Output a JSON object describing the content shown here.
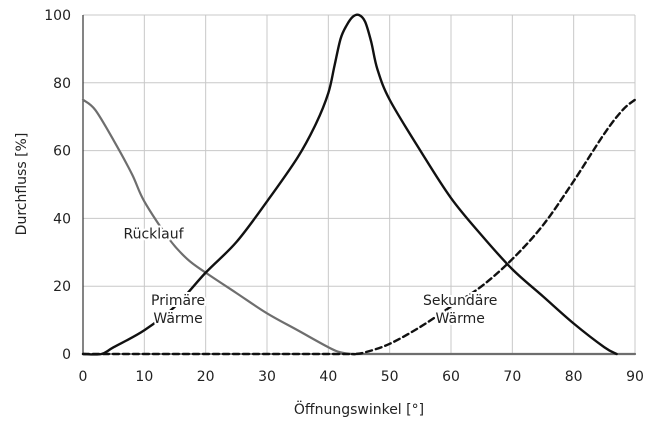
{
  "chart_data": {
    "type": "line",
    "xlabel": "Öffnungswinkel [°]",
    "ylabel": "Durchfluss [%]",
    "xlim": [
      0,
      90
    ],
    "ylim": [
      0,
      100
    ],
    "xticks": [
      "0",
      "10",
      "20",
      "30",
      "40",
      "50",
      "60",
      "70",
      "80",
      "90"
    ],
    "yticks": [
      "0",
      "20",
      "40",
      "60",
      "80",
      "100"
    ],
    "grid": true,
    "colors": {
      "grid": "#c8c8c8",
      "axis": "#333333",
      "ruecklauf": "#6e6e6e",
      "primaer": "#111111",
      "sekundaer": "#111111"
    },
    "series": [
      {
        "key": "ruecklauf",
        "style": "solid",
        "x": [
          0,
          2,
          5,
          8,
          10,
          14,
          17,
          20,
          25,
          30,
          35,
          40,
          42,
          44,
          46,
          50,
          60,
          70,
          80,
          88,
          90
        ],
        "y": [
          75,
          72,
          63,
          53,
          45,
          34,
          28,
          24,
          18,
          12,
          7,
          2,
          0.5,
          0,
          0,
          0,
          0,
          0,
          0,
          0,
          0
        ]
      },
      {
        "key": "primaer",
        "style": "solid",
        "x": [
          0,
          3,
          5,
          10,
          15,
          20,
          25,
          30,
          35,
          38,
          40,
          41,
          42,
          43,
          44,
          45,
          46,
          47,
          48,
          50,
          55,
          60,
          65,
          70,
          75,
          80,
          85,
          87
        ],
        "y": [
          0,
          0,
          2,
          7,
          14,
          24,
          33,
          45,
          58,
          68,
          77,
          85,
          93,
          97,
          99.5,
          100,
          98,
          92,
          84,
          75,
          60,
          46,
          35,
          25,
          17,
          9,
          2,
          0
        ]
      },
      {
        "key": "sekundaer",
        "style": "dashed",
        "x": [
          0,
          40,
          44,
          46,
          50,
          55,
          60,
          65,
          70,
          75,
          80,
          85,
          88,
          90
        ],
        "y": [
          0,
          0,
          0,
          0.5,
          3,
          8,
          14,
          20,
          28,
          38,
          51,
          65,
          72,
          75
        ]
      }
    ],
    "annotations": [
      {
        "key": "ruecklauf_label",
        "lines": [
          "Rücklauf"
        ],
        "x": 11.5,
        "y": 34
      },
      {
        "key": "primaer_label",
        "lines": [
          "Primäre",
          "Wärme"
        ],
        "x": 15.5,
        "y": 14.5
      },
      {
        "key": "sekundaer_label",
        "lines": [
          "Sekundäre",
          "Wärme"
        ],
        "x": 61.5,
        "y": 14.5
      }
    ]
  }
}
